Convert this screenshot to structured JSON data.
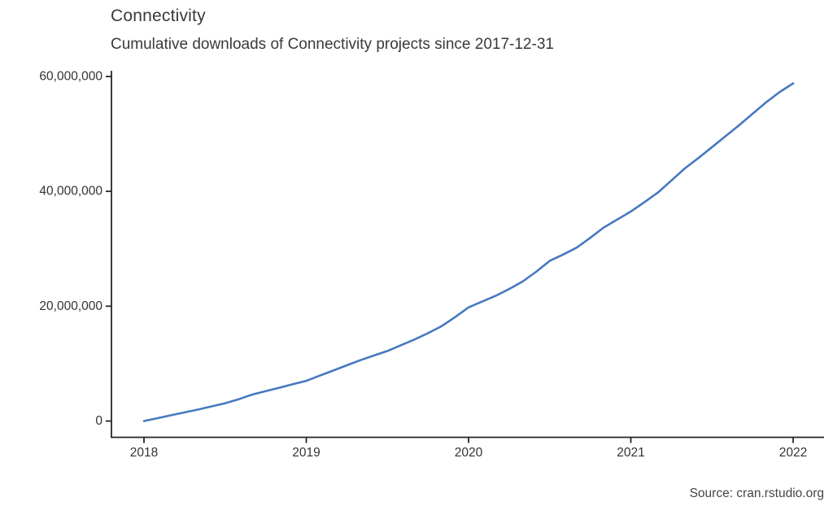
{
  "page": {
    "background": "#ffffff"
  },
  "colors": {
    "line": "#4679c0",
    "axis": "#262626",
    "title_text": "#3a3a3a",
    "tick_text": "#333333",
    "source_text": "#454545"
  },
  "chart_data": {
    "type": "line",
    "title": "Connectivity",
    "subtitle": "Cumulative downloads of Connectivity projects since 2017-12-31",
    "source": "Source: cran.rstudio.org",
    "xlabel": "",
    "ylabel": "",
    "grid": false,
    "legend": "none",
    "x_axis": {
      "ticks": [
        2018,
        2019,
        2020,
        2021,
        2022
      ],
      "tick_labels": [
        "2018",
        "2019",
        "2020",
        "2021",
        "2022"
      ],
      "range": [
        2017.8,
        2022.19
      ]
    },
    "y_axis": {
      "ticks": [
        0,
        20000000,
        40000000,
        60000000
      ],
      "tick_labels": [
        "0",
        "20,000,000",
        "40,000,000",
        "60,000,000"
      ],
      "range": [
        0,
        61000000
      ]
    },
    "series": [
      {
        "name": "cumulative-downloads",
        "color": "#4679c0",
        "x": [
          2018.0,
          2018.0833,
          2018.1667,
          2018.25,
          2018.3333,
          2018.4167,
          2018.5,
          2018.5833,
          2018.6667,
          2018.75,
          2018.8333,
          2018.9167,
          2019.0,
          2019.0833,
          2019.1667,
          2019.25,
          2019.3333,
          2019.4167,
          2019.5,
          2019.5833,
          2019.6667,
          2019.75,
          2019.8333,
          2019.9167,
          2020.0,
          2020.0833,
          2020.1667,
          2020.25,
          2020.3333,
          2020.4167,
          2020.5,
          2020.5833,
          2020.6667,
          2020.75,
          2020.8333,
          2020.9167,
          2021.0,
          2021.0833,
          2021.1667,
          2021.25,
          2021.3333,
          2021.4167,
          2021.5,
          2021.5833,
          2021.6667,
          2021.75,
          2021.8333,
          2021.9167,
          2022.0
        ],
        "y": [
          0,
          500000,
          1000000,
          1500000,
          2000000,
          2550000,
          3100000,
          3800000,
          4600000,
          5200000,
          5800000,
          6400000,
          7000000,
          7900000,
          8800000,
          9700000,
          10600000,
          11400000,
          12200000,
          13200000,
          14200000,
          15300000,
          16500000,
          18100000,
          19800000,
          20800000,
          21800000,
          23000000,
          24300000,
          26000000,
          27900000,
          29000000,
          30200000,
          31900000,
          33700000,
          35100000,
          36500000,
          38100000,
          39800000,
          41900000,
          44000000,
          45800000,
          47700000,
          49600000,
          51500000,
          53500000,
          55500000,
          57300000,
          58800000
        ]
      }
    ]
  }
}
